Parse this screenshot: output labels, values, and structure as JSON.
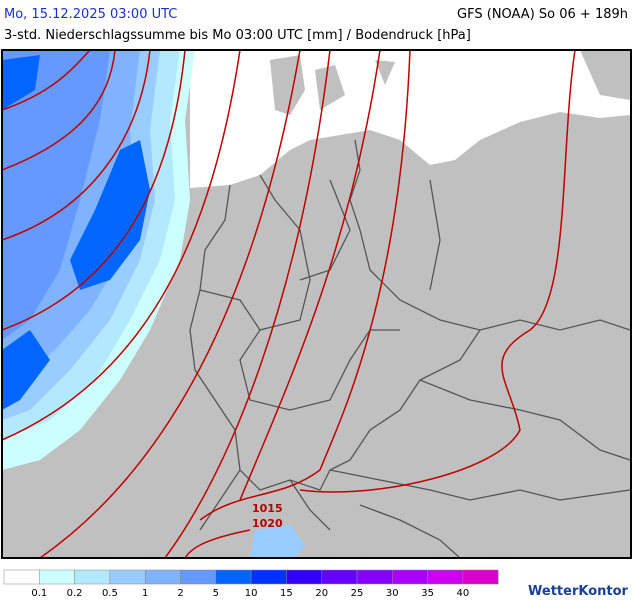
{
  "header": {
    "title": "Mo, 15.12.2025 03:00 UTC",
    "model": "GFS (NOAA) So 06 + 189h",
    "subtitle": "3-std. Niederschlagssumme bis Mo 03:00 UTC [mm] / Bodendruck [hPa]"
  },
  "map": {
    "isobar_labels": [
      1015,
      1020
    ]
  },
  "legend": {
    "colors": [
      "#ffffff",
      "#ccffff",
      "#b3e9ff",
      "#99ccff",
      "#80b3ff",
      "#6699ff",
      "#0066ff",
      "#0033ff",
      "#3300ff",
      "#6600ff",
      "#8800ff",
      "#aa00ff",
      "#cc00ee",
      "#dd00cc"
    ],
    "levels": [
      0.1,
      0.2,
      0.5,
      1,
      2,
      5,
      10,
      15,
      20,
      25,
      30,
      35,
      40
    ]
  },
  "brand": "WetterKontor"
}
